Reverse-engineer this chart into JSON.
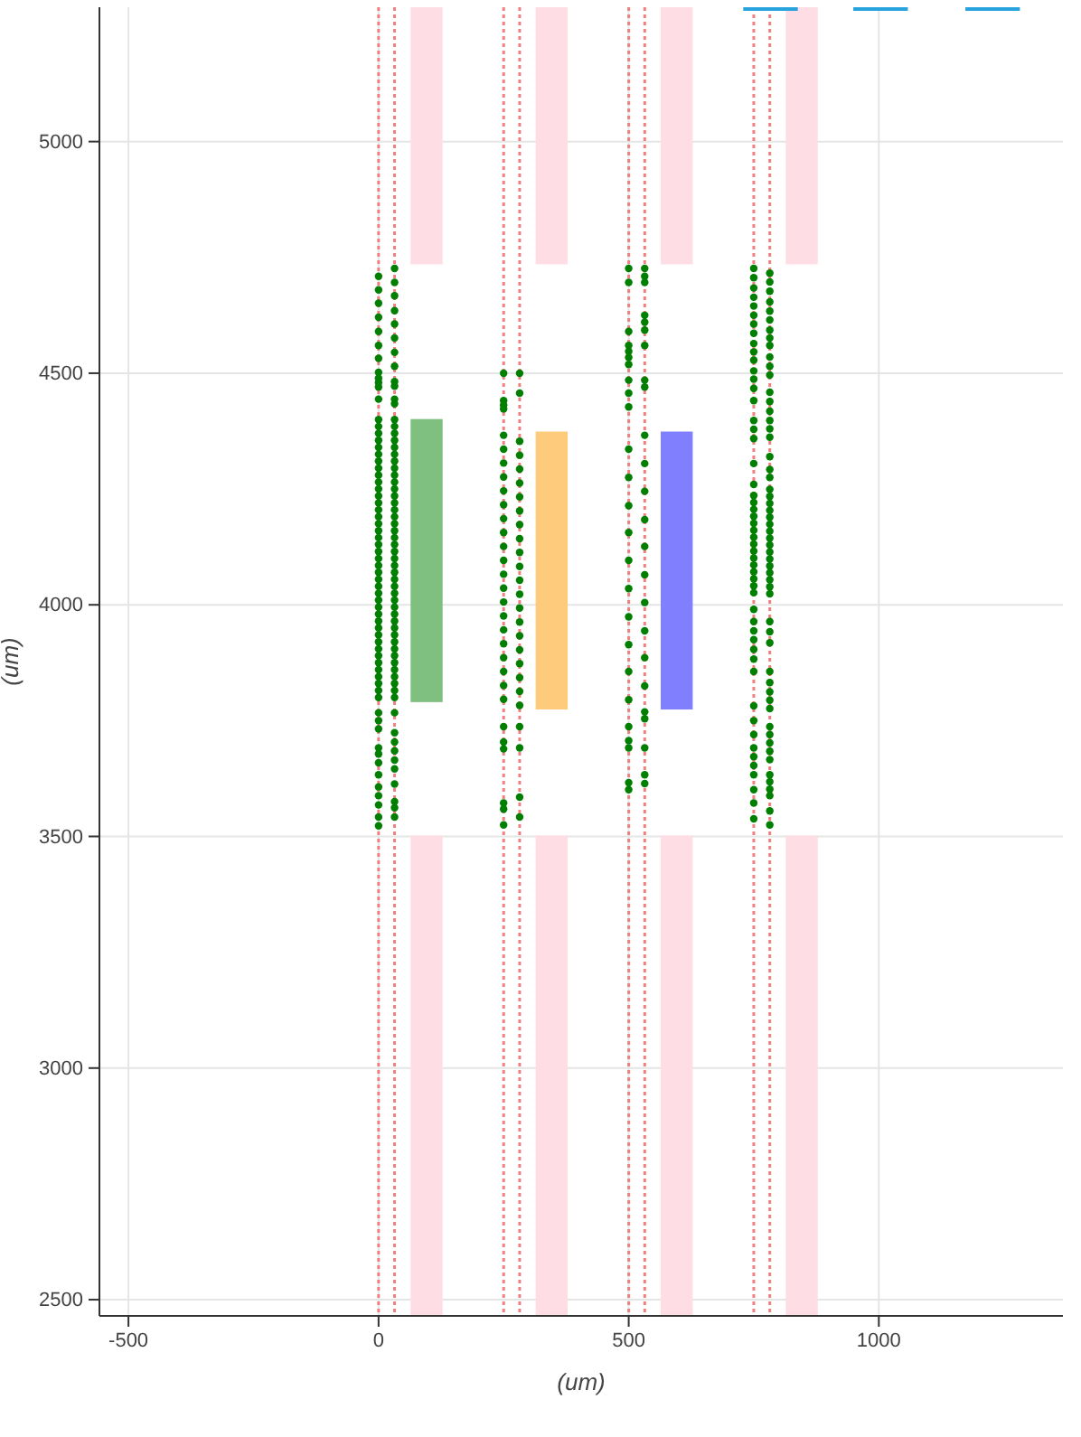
{
  "chart_data": {
    "type": "scatter",
    "xlabel": "(um)",
    "ylabel": "(um)",
    "xlim": [
      -558,
      1368
    ],
    "ylim": [
      2465,
      5290
    ],
    "xticks": [
      -500,
      0,
      500,
      1000
    ],
    "yticks": [
      2500,
      3000,
      3500,
      4000,
      4500,
      5000
    ],
    "grid": true,
    "marker": "circle",
    "ref_lines": [
      {
        "axis": "x",
        "value": 0,
        "color": "#f08080",
        "line_style": "dotted"
      },
      {
        "axis": "x",
        "value": 32,
        "color": "#f08080",
        "line_style": "dotted"
      },
      {
        "axis": "x",
        "value": 250,
        "color": "#f08080",
        "line_style": "dotted"
      },
      {
        "axis": "x",
        "value": 282,
        "color": "#f08080",
        "line_style": "dotted"
      },
      {
        "axis": "x",
        "value": 500,
        "color": "#f08080",
        "line_style": "dotted"
      },
      {
        "axis": "x",
        "value": 532,
        "color": "#f08080",
        "line_style": "dotted"
      },
      {
        "axis": "x",
        "value": 750,
        "color": "#f08080",
        "line_style": "dotted"
      },
      {
        "axis": "x",
        "value": 782,
        "color": "#f08080",
        "line_style": "dotted"
      }
    ],
    "series": [
      {
        "type": "bar",
        "x": [
          96,
          346,
          596,
          846
        ],
        "base": [
          4735,
          4735,
          4735,
          4735
        ],
        "values": [
          555,
          555,
          555,
          555
        ],
        "color": "#ffdde5"
      },
      {
        "type": "bar",
        "x": [
          96,
          346,
          596,
          846
        ],
        "base": [
          2465,
          2465,
          2465,
          2465
        ],
        "values": [
          1037,
          1037,
          1037,
          1037
        ],
        "color": "#ffdde5"
      },
      {
        "type": "bar",
        "x": [
          96,
          346,
          596
        ],
        "base": [
          3790,
          3774,
          3774
        ],
        "values": [
          611,
          600,
          600
        ],
        "colors": [
          "#7fbf7f",
          "#fecb7c",
          "#8080ff"
        ]
      },
      {
        "type": "line",
        "marker": "none",
        "color": "#29a3dd",
        "x": [
          729,
          838,
          893,
          949,
          1058,
          1115,
          1173,
          1282
        ],
        "values": [
          5288,
          5288,
          null,
          5288,
          5288,
          null,
          5288,
          5288
        ]
      },
      {
        "color": "#007f00",
        "x": [
          0,
          0,
          0,
          0,
          0,
          0,
          0,
          0,
          0,
          0,
          0,
          0,
          0,
          0,
          0,
          0,
          0,
          0,
          0,
          0,
          0,
          0,
          0,
          0,
          0,
          0,
          0,
          0,
          0,
          0,
          0,
          0,
          0,
          0,
          0,
          0,
          0,
          0,
          0,
          0,
          0,
          0,
          0,
          0,
          0,
          0,
          0,
          0,
          0,
          0,
          0,
          0,
          0,
          0,
          0,
          0,
          0,
          0,
          0,
          0,
          0,
          0,
          0,
          0,
          0
        ],
        "values": [
          4709,
          4680,
          4651,
          4621,
          4590,
          4560,
          4532,
          4502,
          4489,
          4480,
          4470,
          4444,
          4400,
          4385,
          4370,
          4355,
          4340,
          4325,
          4310,
          4295,
          4280,
          4265,
          4250,
          4235,
          4220,
          4205,
          4190,
          4175,
          4160,
          4145,
          4130,
          4115,
          4100,
          4085,
          4070,
          4055,
          4040,
          4025,
          4010,
          3995,
          3980,
          3965,
          3950,
          3935,
          3920,
          3905,
          3890,
          3875,
          3860,
          3845,
          3830,
          3815,
          3800,
          3767,
          3750,
          3732,
          3691,
          3678,
          3659,
          3633,
          3607,
          3588,
          3568,
          3542,
          3523
        ]
      },
      {
        "color": "#007f00",
        "x": [
          32,
          32,
          32,
          32,
          32,
          32,
          32,
          32,
          32,
          32,
          32,
          32,
          32,
          32,
          32,
          32,
          32,
          32,
          32,
          32,
          32,
          32,
          32,
          32,
          32,
          32,
          32,
          32,
          32,
          32,
          32,
          32,
          32,
          32,
          32,
          32,
          32,
          32,
          32,
          32,
          32,
          32,
          32,
          32,
          32,
          32,
          32,
          32,
          32,
          32,
          32,
          32,
          32,
          32,
          32,
          32,
          32,
          32,
          32,
          32,
          32,
          32,
          32
        ],
        "values": [
          4726,
          4696,
          4667,
          4635,
          4606,
          4576,
          4545,
          4515,
          4482,
          4472,
          4444,
          4434,
          4400,
          4385,
          4370,
          4355,
          4340,
          4325,
          4310,
          4295,
          4280,
          4265,
          4250,
          4235,
          4220,
          4205,
          4190,
          4175,
          4160,
          4145,
          4130,
          4115,
          4100,
          4085,
          4070,
          4055,
          4040,
          4025,
          4010,
          3995,
          3980,
          3965,
          3950,
          3935,
          3920,
          3905,
          3890,
          3875,
          3860,
          3845,
          3830,
          3815,
          3800,
          3767,
          3724,
          3704,
          3685,
          3665,
          3646,
          3613,
          3575,
          3562,
          3542
        ]
      },
      {
        "color": "#007f00",
        "x": [
          250,
          250,
          250,
          250,
          250,
          250,
          250,
          250,
          250,
          250,
          250,
          250,
          250,
          250,
          250,
          250,
          250,
          250,
          250,
          250,
          250,
          250,
          250,
          250,
          250,
          250,
          250,
          250,
          250,
          250
        ],
        "values": [
          4500,
          4441,
          4431,
          4423,
          4366,
          4336,
          4306,
          4276,
          4246,
          4216,
          4186,
          4156,
          4126,
          4096,
          4066,
          4036,
          4006,
          3976,
          3946,
          3916,
          3886,
          3856,
          3826,
          3796,
          3737,
          3704,
          3689,
          3572,
          3559,
          3525
        ]
      },
      {
        "color": "#007f00",
        "x": [
          282,
          282,
          282,
          282,
          282,
          282,
          282,
          282,
          282,
          282,
          282,
          282,
          282,
          282,
          282,
          282,
          282,
          282,
          282,
          282,
          282,
          282,
          282,
          282,
          282,
          282
        ],
        "values": [
          4500,
          4457,
          4353,
          4323,
          4293,
          4263,
          4233,
          4203,
          4173,
          4143,
          4113,
          4083,
          4053,
          4023,
          3993,
          3963,
          3933,
          3903,
          3873,
          3843,
          3813,
          3783,
          3737,
          3691,
          3585,
          3542
        ]
      },
      {
        "color": "#007f00",
        "x": [
          500,
          500,
          500,
          500,
          500,
          500,
          500,
          500,
          500,
          500,
          500,
          500,
          500,
          500,
          500,
          500,
          500,
          500,
          500,
          500,
          500,
          500,
          500,
          500,
          500
        ],
        "values": [
          4726,
          4696,
          4590,
          4560,
          4547,
          4534,
          4519,
          4485,
          4457,
          4427,
          4336,
          4275,
          4214,
          4156,
          4096,
          4035,
          3974,
          3914,
          3856,
          3795,
          3737,
          3707,
          3691,
          3616,
          3601
        ]
      },
      {
        "color": "#007f00",
        "x": [
          532,
          532,
          532,
          532,
          532,
          532,
          532,
          532,
          532,
          532,
          532,
          532,
          532,
          532,
          532,
          532,
          532,
          532,
          532,
          532,
          532,
          532,
          532,
          532
        ],
        "values": [
          4726,
          4709,
          4696,
          4625,
          4610,
          4593,
          4560,
          4485,
          4470,
          4366,
          4305,
          4245,
          4184,
          4126,
          4065,
          4005,
          3944,
          3886,
          3825,
          3769,
          3754,
          3691,
          3633,
          3614
        ]
      },
      {
        "color": "#007f00",
        "x": [
          750,
          750,
          750,
          750,
          750,
          750,
          750,
          750,
          750,
          750,
          750,
          750,
          750,
          750,
          750,
          750,
          750,
          750,
          750,
          750,
          750,
          750,
          750,
          750,
          750,
          750,
          750,
          750,
          750,
          750,
          750,
          750,
          750,
          750,
          750,
          750,
          750,
          750,
          750,
          750,
          750,
          750,
          750,
          750,
          750,
          750,
          750,
          750,
          750,
          750,
          750,
          750
        ],
        "values": [
          4726,
          4706,
          4684,
          4664,
          4645,
          4625,
          4606,
          4586,
          4564,
          4546,
          4528,
          4505,
          4487,
          4467,
          4441,
          4398,
          4379,
          4359,
          4305,
          4260,
          4236,
          4221,
          4206,
          4191,
          4176,
          4161,
          4146,
          4131,
          4116,
          4101,
          4086,
          4071,
          4056,
          4041,
          4026,
          3990,
          3964,
          3944,
          3925,
          3904,
          3883,
          3856,
          3782,
          3750,
          3720,
          3691,
          3672,
          3653,
          3633,
          3601,
          3572,
          3538
        ]
      },
      {
        "color": "#007f00",
        "x": [
          782,
          782,
          782,
          782,
          782,
          782,
          782,
          782,
          782,
          782,
          782,
          782,
          782,
          782,
          782,
          782,
          782,
          782,
          782,
          782,
          782,
          782,
          782,
          782,
          782,
          782,
          782,
          782,
          782,
          782,
          782,
          782,
          782,
          782,
          782,
          782,
          782,
          782,
          782,
          782,
          782,
          782,
          782,
          782,
          782,
          782,
          782,
          782,
          782,
          782,
          782,
          782,
          782,
          782,
          782,
          782
        ],
        "values": [
          4716,
          4697,
          4677,
          4654,
          4634,
          4615,
          4593,
          4576,
          4560,
          4535,
          4515,
          4496,
          4459,
          4439,
          4418,
          4398,
          4380,
          4362,
          4320,
          4292,
          4275,
          4249,
          4234,
          4219,
          4204,
          4189,
          4174,
          4159,
          4144,
          4129,
          4114,
          4099,
          4084,
          4069,
          4054,
          4039,
          4024,
          3964,
          3942,
          3918,
          3856,
          3832,
          3812,
          3794,
          3776,
          3737,
          3720,
          3702,
          3684,
          3666,
          3633,
          3618,
          3602,
          3588,
          3555,
          3525
        ]
      }
    ]
  }
}
